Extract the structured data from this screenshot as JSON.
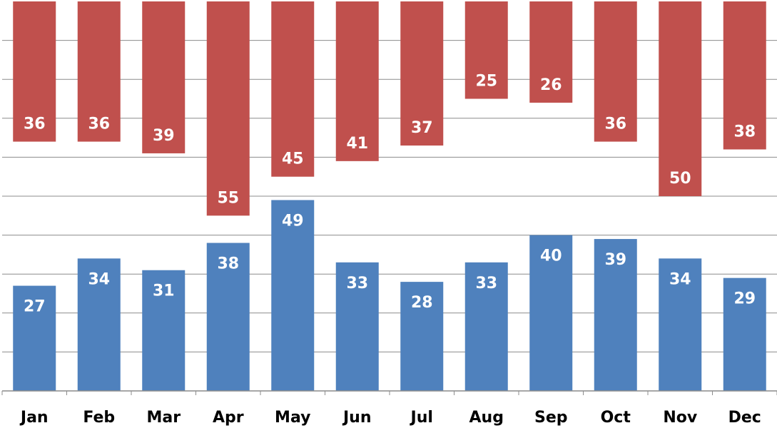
{
  "chart_data": {
    "type": "bar",
    "categories": [
      "Jan",
      "Feb",
      "Mar",
      "Apr",
      "May",
      "Jun",
      "Jul",
      "Aug",
      "Sep",
      "Oct",
      "Nov",
      "Dec"
    ],
    "series": [
      {
        "values": [
          27,
          34,
          31,
          38,
          49,
          33,
          28,
          33,
          40,
          39,
          34,
          29
        ],
        "color": "#4F81BD",
        "baseline": "bottom"
      },
      {
        "values": [
          36,
          36,
          39,
          55,
          45,
          41,
          37,
          25,
          26,
          36,
          50,
          38
        ],
        "color": "#C0504D",
        "baseline": "top"
      }
    ],
    "ylim": [
      0,
      100
    ],
    "grid": true,
    "title": "",
    "xlabel": "",
    "ylabel": ""
  }
}
